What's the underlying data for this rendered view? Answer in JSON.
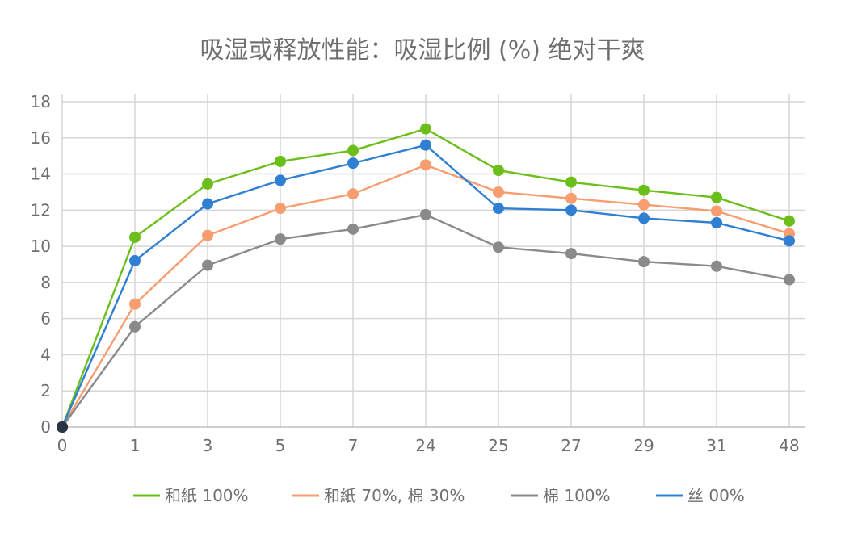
{
  "chart_data": {
    "type": "line",
    "title": "吸湿或释放性能：吸湿比例 (%) 绝对干爽",
    "xlabel": "",
    "ylabel": "",
    "categories": [
      "0",
      "1",
      "3",
      "5",
      "7",
      "24",
      "25",
      "27",
      "29",
      "31",
      "48"
    ],
    "yticks": [
      "0",
      "2",
      "4",
      "6",
      "8",
      "10",
      "12",
      "14",
      "16",
      "18"
    ],
    "ylim": [
      0,
      18
    ],
    "grid": true,
    "legend_position": "bottom",
    "series": [
      {
        "name": "和紙 100%",
        "color": "#6cbf1b",
        "values": [
          0,
          10.5,
          13.45,
          14.7,
          15.3,
          16.5,
          14.2,
          13.55,
          13.1,
          12.7,
          11.4
        ]
      },
      {
        "name": "和紙 70%, 棉 30%",
        "color": "#f79d6f",
        "values": [
          0,
          6.8,
          10.6,
          12.1,
          12.9,
          14.5,
          13.0,
          12.65,
          12.3,
          11.95,
          10.7
        ]
      },
      {
        "name": "棉 100%",
        "color": "#8a8a8a",
        "values": [
          0,
          5.55,
          8.95,
          10.4,
          10.95,
          11.75,
          9.95,
          9.6,
          9.15,
          8.9,
          8.15
        ]
      },
      {
        "name": "丝 00%",
        "color": "#2f7fd3",
        "values": [
          0,
          9.2,
          12.35,
          13.65,
          14.6,
          15.6,
          12.1,
          12.0,
          11.55,
          11.3,
          10.3
        ]
      }
    ],
    "origin_marker_color": "#2b3440"
  }
}
